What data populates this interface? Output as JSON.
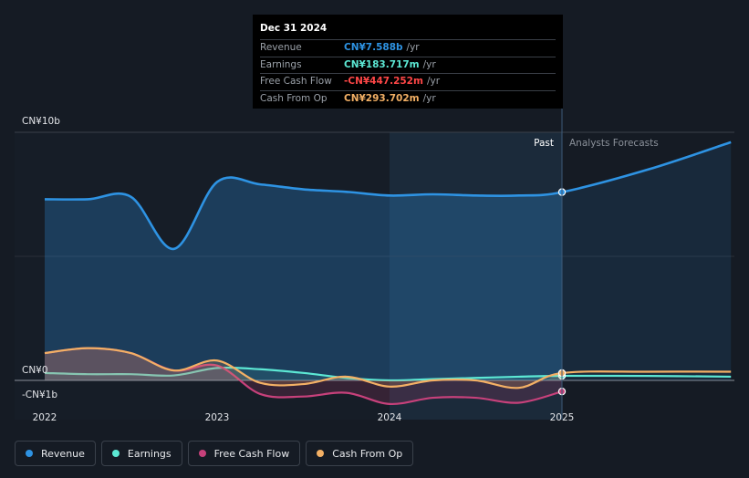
{
  "tooltip": {
    "date": "Dec 31 2024",
    "rows": [
      {
        "label": "Revenue",
        "value": "CN¥7.588b",
        "unit": "/yr",
        "color": "#2e93e3"
      },
      {
        "label": "Earnings",
        "value": "CN¥183.717m",
        "unit": "/yr",
        "color": "#5ce8d4"
      },
      {
        "label": "Free Cash Flow",
        "value": "-CN¥447.252m",
        "unit": "/yr",
        "color": "#ff4747"
      },
      {
        "label": "Cash From Op",
        "value": "CN¥293.702m",
        "unit": "/yr",
        "color": "#f3b065"
      }
    ]
  },
  "labels": {
    "past": "Past",
    "forecast": "Analysts Forecasts"
  },
  "legend": [
    {
      "label": "Revenue",
      "color": "#2e93e3"
    },
    {
      "label": "Earnings",
      "color": "#5ce8d4"
    },
    {
      "label": "Free Cash Flow",
      "color": "#c7417b"
    },
    {
      "label": "Cash From Op",
      "color": "#f3b065"
    }
  ],
  "chart_data": {
    "type": "line",
    "y_ticks": [
      {
        "value": 10,
        "label": "CN¥10b"
      },
      {
        "value": 0,
        "label": "CN¥0"
      },
      {
        "value": -1,
        "label": "-CN¥1b"
      }
    ],
    "x_ticks": [
      {
        "value": 2022,
        "label": "2022"
      },
      {
        "value": 2023,
        "label": "2023"
      },
      {
        "value": 2024,
        "label": "2024"
      },
      {
        "value": 2025,
        "label": "2025"
      }
    ],
    "ylim": [
      -1,
      10
    ],
    "past_end": 2025.0,
    "series": [
      {
        "name": "Revenue",
        "color": "#2e93e3",
        "points": [
          [
            2022.0,
            7.3
          ],
          [
            2022.25,
            7.3
          ],
          [
            2022.5,
            7.4
          ],
          [
            2022.75,
            5.3
          ],
          [
            2023.0,
            8.0
          ],
          [
            2023.25,
            7.9
          ],
          [
            2023.5,
            7.7
          ],
          [
            2023.75,
            7.6
          ],
          [
            2024.0,
            7.45
          ],
          [
            2024.25,
            7.5
          ],
          [
            2024.5,
            7.45
          ],
          [
            2024.75,
            7.45
          ],
          [
            2025.0,
            7.588
          ],
          [
            2025.5,
            8.5
          ],
          [
            2025.98,
            9.6
          ]
        ]
      },
      {
        "name": "Earnings",
        "color": "#5ce8d4",
        "points": [
          [
            2022.0,
            0.3
          ],
          [
            2022.25,
            0.25
          ],
          [
            2022.5,
            0.25
          ],
          [
            2022.75,
            0.2
          ],
          [
            2023.0,
            0.5
          ],
          [
            2023.25,
            0.45
          ],
          [
            2023.5,
            0.3
          ],
          [
            2023.75,
            0.1
          ],
          [
            2024.0,
            0.0
          ],
          [
            2024.25,
            0.05
          ],
          [
            2024.5,
            0.1
          ],
          [
            2024.75,
            0.15
          ],
          [
            2025.0,
            0.183717
          ],
          [
            2025.5,
            0.18
          ],
          [
            2025.98,
            0.15
          ]
        ]
      },
      {
        "name": "Free Cash Flow",
        "color": "#c7417b",
        "points": [
          [
            2022.0,
            1.1
          ],
          [
            2022.25,
            1.3
          ],
          [
            2022.5,
            1.1
          ],
          [
            2022.75,
            0.4
          ],
          [
            2023.0,
            0.6
          ],
          [
            2023.25,
            -0.55
          ],
          [
            2023.5,
            -0.65
          ],
          [
            2023.75,
            -0.5
          ],
          [
            2024.0,
            -0.95
          ],
          [
            2024.25,
            -0.7
          ],
          [
            2024.5,
            -0.7
          ],
          [
            2024.75,
            -0.9
          ],
          [
            2025.0,
            -0.447252
          ]
        ]
      },
      {
        "name": "Cash From Op",
        "color": "#f3b065",
        "points": [
          [
            2022.0,
            1.1
          ],
          [
            2022.25,
            1.3
          ],
          [
            2022.5,
            1.1
          ],
          [
            2022.75,
            0.4
          ],
          [
            2023.0,
            0.8
          ],
          [
            2023.25,
            -0.1
          ],
          [
            2023.5,
            -0.15
          ],
          [
            2023.75,
            0.15
          ],
          [
            2024.0,
            -0.25
          ],
          [
            2024.25,
            0.0
          ],
          [
            2024.5,
            0.0
          ],
          [
            2024.75,
            -0.3
          ],
          [
            2025.0,
            0.293702
          ],
          [
            2025.5,
            0.35
          ],
          [
            2025.98,
            0.35
          ]
        ]
      }
    ]
  }
}
